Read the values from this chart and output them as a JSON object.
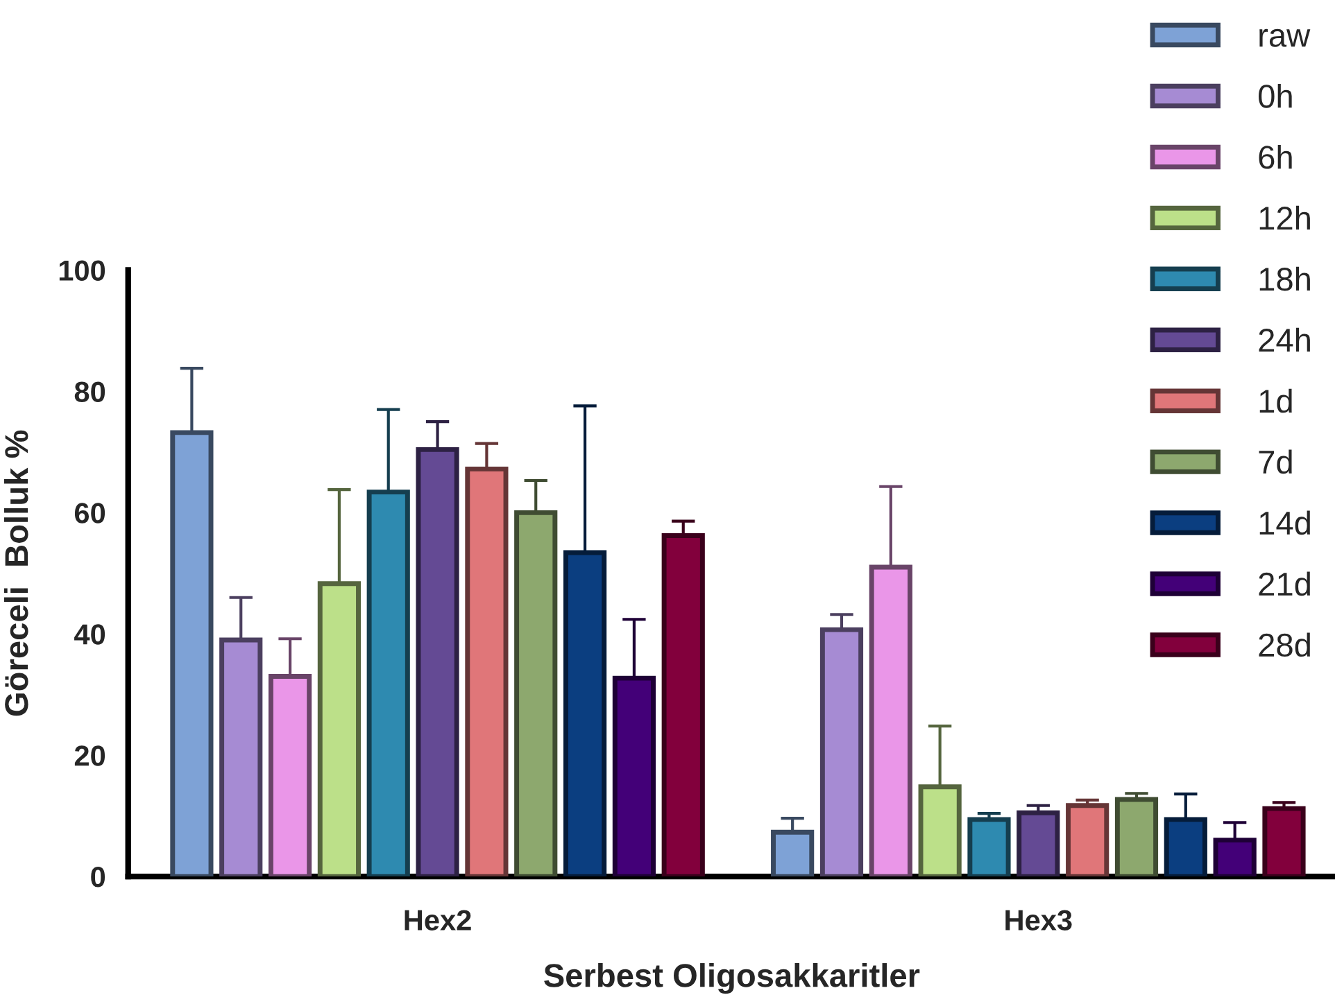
{
  "chart_data": {
    "type": "bar",
    "xlabel": "Serbest Oligosakkaritler",
    "ylabel": "Göreceli  Bolluk %",
    "categories": [
      "Hex2",
      "Hex3"
    ],
    "series": [
      {
        "name": "raw",
        "color": "#7ea2d6",
        "values": [
          73.2,
          7.3
        ],
        "errors": [
          10.6,
          2.3
        ]
      },
      {
        "name": "0h",
        "color": "#a68bd3",
        "values": [
          39.0,
          40.7
        ],
        "errors": [
          7.0,
          2.5
        ]
      },
      {
        "name": "6h",
        "color": "#ea96e8",
        "values": [
          33.0,
          51.0
        ],
        "errors": [
          6.2,
          13.3
        ]
      },
      {
        "name": "12h",
        "color": "#bce089",
        "values": [
          48.3,
          14.8
        ],
        "errors": [
          15.5,
          10.0
        ]
      },
      {
        "name": "18h",
        "color": "#2e8ab0",
        "values": [
          63.4,
          9.4
        ],
        "errors": [
          13.6,
          1.0
        ]
      },
      {
        "name": "24h",
        "color": "#644a94",
        "values": [
          70.4,
          10.5
        ],
        "errors": [
          4.6,
          1.2
        ]
      },
      {
        "name": "1d",
        "color": "#e07679",
        "values": [
          67.2,
          11.7
        ],
        "errors": [
          4.2,
          0.9
        ]
      },
      {
        "name": "7d",
        "color": "#8da86e",
        "values": [
          60.0,
          12.7
        ],
        "errors": [
          5.3,
          1.0
        ]
      },
      {
        "name": "14d",
        "color": "#0b3e80",
        "values": [
          53.4,
          9.4
        ],
        "errors": [
          24.2,
          4.2
        ]
      },
      {
        "name": "21d",
        "color": "#430078",
        "values": [
          32.7,
          6.0
        ],
        "errors": [
          9.7,
          2.9
        ]
      },
      {
        "name": "28d",
        "color": "#82003c",
        "values": [
          56.2,
          11.2
        ],
        "errors": [
          2.4,
          1.0
        ]
      }
    ],
    "ylim": [
      0,
      100
    ],
    "yticks": [
      0,
      20,
      40,
      60,
      80,
      100
    ],
    "grid": false,
    "legend": "right"
  }
}
